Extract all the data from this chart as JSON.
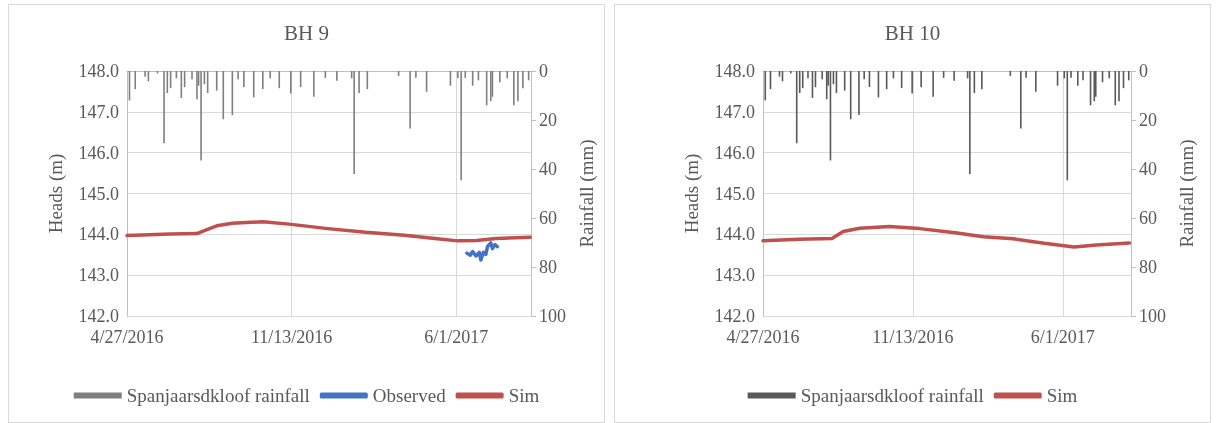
{
  "chart_data": [
    {
      "type": "line",
      "title": "BH 9",
      "ylabel": "Heads (m)",
      "y2label": "Rainfall (mm)",
      "xlim": [
        "2016-04-27",
        "2017-08-31"
      ],
      "xticks": [
        {
          "value": "2016-04-27",
          "label": "4/27/2016"
        },
        {
          "value": "2016-11-13",
          "label": "11/13/2016"
        },
        {
          "value": "2017-06-01",
          "label": "6/1/2017"
        }
      ],
      "ylim": [
        142,
        148
      ],
      "yticks": [
        {
          "value": 142,
          "label": "142.0"
        },
        {
          "value": 143,
          "label": "143.0"
        },
        {
          "value": 144,
          "label": "144.0"
        },
        {
          "value": 145,
          "label": "145.0"
        },
        {
          "value": 146,
          "label": "146.0"
        },
        {
          "value": 147,
          "label": "147.0"
        },
        {
          "value": 148,
          "label": "148.0"
        }
      ],
      "y2lim": [
        100,
        0
      ],
      "y2ticks": [
        0,
        20,
        40,
        60,
        80,
        100
      ],
      "grid": true,
      "legend": "bottom",
      "series": [
        {
          "name": "Spanjaarsdkloof rainfall",
          "type": "bar",
          "axis": "y2",
          "color": "#7f7f7f",
          "x": [
            "2016-04-30",
            "2016-05-07",
            "2016-05-19",
            "2016-05-23",
            "2016-06-03",
            "2016-06-11",
            "2016-06-15",
            "2016-06-19",
            "2016-06-26",
            "2016-07-02",
            "2016-07-06",
            "2016-07-15",
            "2016-07-21",
            "2016-07-23",
            "2016-07-26",
            "2016-07-30",
            "2016-08-03",
            "2016-08-14",
            "2016-08-22",
            "2016-09-02",
            "2016-09-09",
            "2016-09-16",
            "2016-09-28",
            "2016-10-09",
            "2016-10-18",
            "2016-10-29",
            "2016-11-12",
            "2016-11-24",
            "2016-12-10",
            "2016-12-24",
            "2017-01-07",
            "2017-01-25",
            "2017-01-28",
            "2017-02-03",
            "2017-02-13",
            "2017-03-23",
            "2017-04-06",
            "2017-04-13",
            "2017-04-26",
            "2017-05-25",
            "2017-06-03",
            "2017-06-07",
            "2017-06-12",
            "2017-06-21",
            "2017-06-28",
            "2017-07-08",
            "2017-07-13",
            "2017-07-15",
            "2017-07-24",
            "2017-08-02",
            "2017-08-10",
            "2017-08-15",
            "2017-08-21",
            "2017-08-28"
          ],
          "values": [
            12,
            7.4,
            2.3,
            4.2,
            1,
            29.5,
            9,
            7,
            3,
            11,
            6.6,
            3.4,
            11.5,
            6,
            36.5,
            5.4,
            9,
            8,
            19.7,
            18,
            3.4,
            6.5,
            10.8,
            7.4,
            3,
            7,
            9.2,
            6.6,
            10.5,
            2.8,
            4,
            3,
            42,
            9,
            7.4,
            2,
            23.5,
            2.8,
            8.5,
            6,
            3,
            44.6,
            2.8,
            6,
            3.8,
            14,
            12.3,
            10.5,
            4.6,
            3,
            14,
            12.3,
            7,
            3.8
          ]
        },
        {
          "name": "Observed",
          "axis": "y",
          "color": "#4472c4",
          "x": [
            "2017-06-14",
            "2017-06-18",
            "2017-06-21",
            "2017-06-25",
            "2017-06-29",
            "2017-07-01",
            "2017-07-04",
            "2017-07-07",
            "2017-07-09",
            "2017-07-13",
            "2017-07-15",
            "2017-07-18",
            "2017-07-21"
          ],
          "values": [
            143.54,
            143.49,
            143.58,
            143.47,
            143.56,
            143.37,
            143.56,
            143.51,
            143.7,
            143.79,
            143.65,
            143.75,
            143.7
          ]
        },
        {
          "name": "Sim",
          "axis": "y",
          "color": "#c0504d",
          "x": [
            "2016-04-27",
            "2016-06-19",
            "2016-07-21",
            "2016-07-30",
            "2016-08-14",
            "2016-09-02",
            "2016-10-09",
            "2016-11-10",
            "2016-12-27",
            "2017-02-11",
            "2017-03-30",
            "2017-05-06",
            "2017-06-03",
            "2017-06-26",
            "2017-07-19",
            "2017-08-30"
          ],
          "values": [
            143.97,
            144.01,
            144.02,
            144.09,
            144.21,
            144.27,
            144.31,
            144.25,
            144.14,
            144.05,
            143.98,
            143.9,
            143.84,
            143.85,
            143.9,
            143.93
          ]
        }
      ]
    },
    {
      "type": "line",
      "title": "BH 10",
      "ylabel": "Heads (m)",
      "y2label": "Rainfall (mm)",
      "xlim": [
        "2016-04-27",
        "2017-08-31"
      ],
      "xticks": [
        {
          "value": "2016-04-27",
          "label": "4/27/2016"
        },
        {
          "value": "2016-11-13",
          "label": "11/13/2016"
        },
        {
          "value": "2017-06-01",
          "label": "6/1/2017"
        }
      ],
      "ylim": [
        142,
        148
      ],
      "yticks": [
        {
          "value": 142,
          "label": "142.0"
        },
        {
          "value": 143,
          "label": "143.0"
        },
        {
          "value": 144,
          "label": "144.0"
        },
        {
          "value": 145,
          "label": "145.0"
        },
        {
          "value": 146,
          "label": "146.0"
        },
        {
          "value": 147,
          "label": "147.0"
        },
        {
          "value": 148,
          "label": "148.0"
        }
      ],
      "y2lim": [
        100,
        0
      ],
      "y2ticks": [
        0,
        20,
        40,
        60,
        80,
        100
      ],
      "grid": true,
      "legend": "bottom",
      "series": [
        {
          "name": "Spanjaarsdkloof rainfall",
          "type": "bar",
          "axis": "y2",
          "color": "#595959",
          "x": [
            "2016-04-30",
            "2016-05-07",
            "2016-05-19",
            "2016-05-23",
            "2016-06-03",
            "2016-06-11",
            "2016-06-15",
            "2016-06-19",
            "2016-06-26",
            "2016-07-02",
            "2016-07-06",
            "2016-07-15",
            "2016-07-21",
            "2016-07-23",
            "2016-07-26",
            "2016-07-30",
            "2016-08-03",
            "2016-08-14",
            "2016-08-22",
            "2016-09-02",
            "2016-09-09",
            "2016-09-16",
            "2016-09-28",
            "2016-10-09",
            "2016-10-18",
            "2016-10-29",
            "2016-11-12",
            "2016-11-24",
            "2016-12-10",
            "2016-12-24",
            "2017-01-07",
            "2017-01-25",
            "2017-01-28",
            "2017-02-03",
            "2017-02-13",
            "2017-03-23",
            "2017-04-06",
            "2017-04-13",
            "2017-04-26",
            "2017-05-25",
            "2017-06-03",
            "2017-06-07",
            "2017-06-12",
            "2017-06-21",
            "2017-06-28",
            "2017-07-08",
            "2017-07-13",
            "2017-07-15",
            "2017-07-24",
            "2017-08-02",
            "2017-08-10",
            "2017-08-15",
            "2017-08-21",
            "2017-08-28"
          ],
          "values": [
            12,
            7.4,
            2.3,
            4.2,
            1,
            29.5,
            9,
            7,
            3,
            11,
            6.6,
            3.4,
            11.5,
            6,
            36.5,
            5.4,
            9,
            8,
            19.7,
            18,
            3.4,
            6.5,
            10.8,
            7.4,
            3,
            7,
            9.2,
            6.6,
            10.5,
            2.8,
            4,
            3,
            42,
            9,
            7.4,
            2,
            23.5,
            2.8,
            8.5,
            6,
            3,
            44.6,
            2.8,
            6,
            3.8,
            14,
            12.3,
            10.5,
            4.6,
            3,
            14,
            12.3,
            7,
            3.8
          ]
        },
        {
          "name": "Sim",
          "axis": "y",
          "color": "#c0504d",
          "x": [
            "2016-04-27",
            "2016-06-14",
            "2016-07-28",
            "2016-08-12",
            "2016-09-03",
            "2016-10-13",
            "2016-11-22",
            "2017-01-11",
            "2017-02-15",
            "2017-03-27",
            "2017-05-07",
            "2017-06-16",
            "2017-07-16",
            "2017-08-29"
          ],
          "values": [
            143.84,
            143.88,
            143.9,
            144.07,
            144.15,
            144.19,
            144.14,
            144.03,
            143.94,
            143.89,
            143.78,
            143.69,
            143.74,
            143.79
          ]
        }
      ]
    }
  ]
}
